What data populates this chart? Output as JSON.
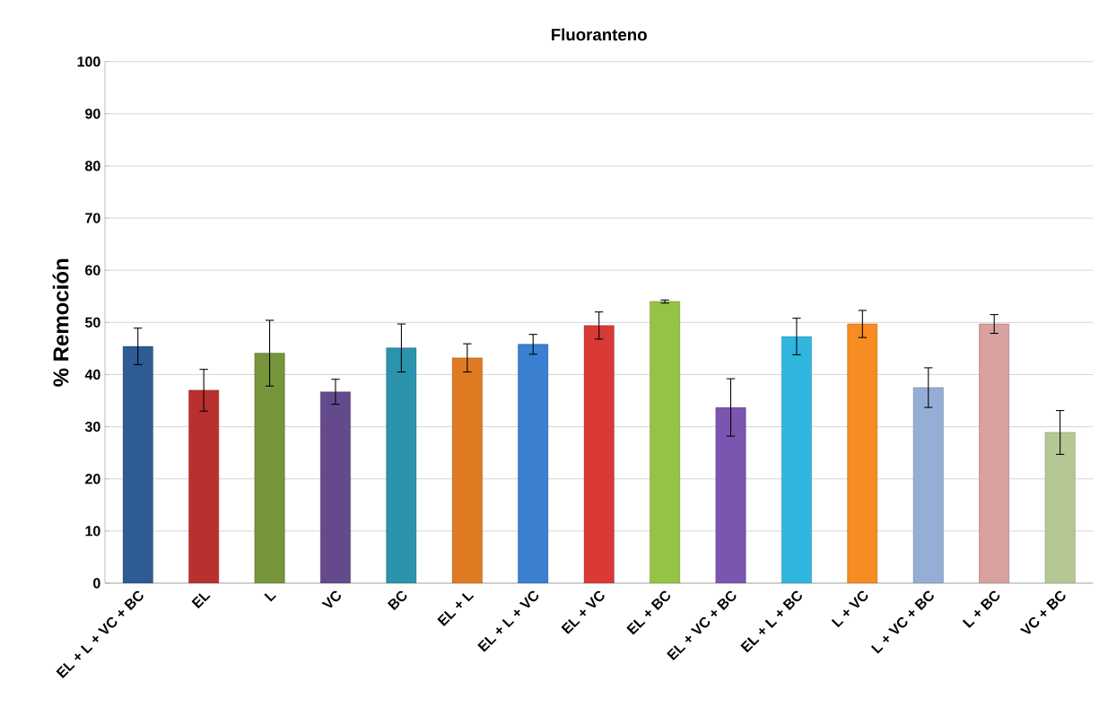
{
  "chart_data": {
    "type": "bar",
    "title": "Fluoranteno",
    "ylabel": "% Remoción",
    "categories": [
      "EL + L + VC + BC",
      "EL",
      "L",
      "VC",
      "BC",
      "EL + L",
      "EL + L + VC",
      "EL + VC",
      "EL + BC",
      "EL + VC + BC",
      "EL + L + BC",
      "L + VC",
      "L + VC + BC",
      "L + BC",
      "VC + BC"
    ],
    "values": [
      45.4,
      37.0,
      44.1,
      36.7,
      45.1,
      43.2,
      45.8,
      49.4,
      54.0,
      33.7,
      47.3,
      49.7,
      37.5,
      49.7,
      28.9
    ],
    "errors": [
      3.5,
      4.0,
      6.3,
      2.4,
      4.6,
      2.7,
      1.9,
      2.6,
      0.3,
      5.5,
      3.5,
      2.6,
      3.8,
      1.8,
      4.2
    ],
    "colors": [
      "#2e5b93",
      "#b8312f",
      "#76943a",
      "#644a8c",
      "#2c93ad",
      "#e07a22",
      "#3a7fd0",
      "#d93a35",
      "#95c444",
      "#7b56b0",
      "#2fb5de",
      "#f68c22",
      "#94aed6",
      "#d9a0a0",
      "#b5c894"
    ],
    "ylim": [
      0,
      100
    ],
    "yticks": [
      0,
      10,
      20,
      30,
      40,
      50,
      60,
      70,
      80,
      90,
      100
    ],
    "grid": "y"
  }
}
